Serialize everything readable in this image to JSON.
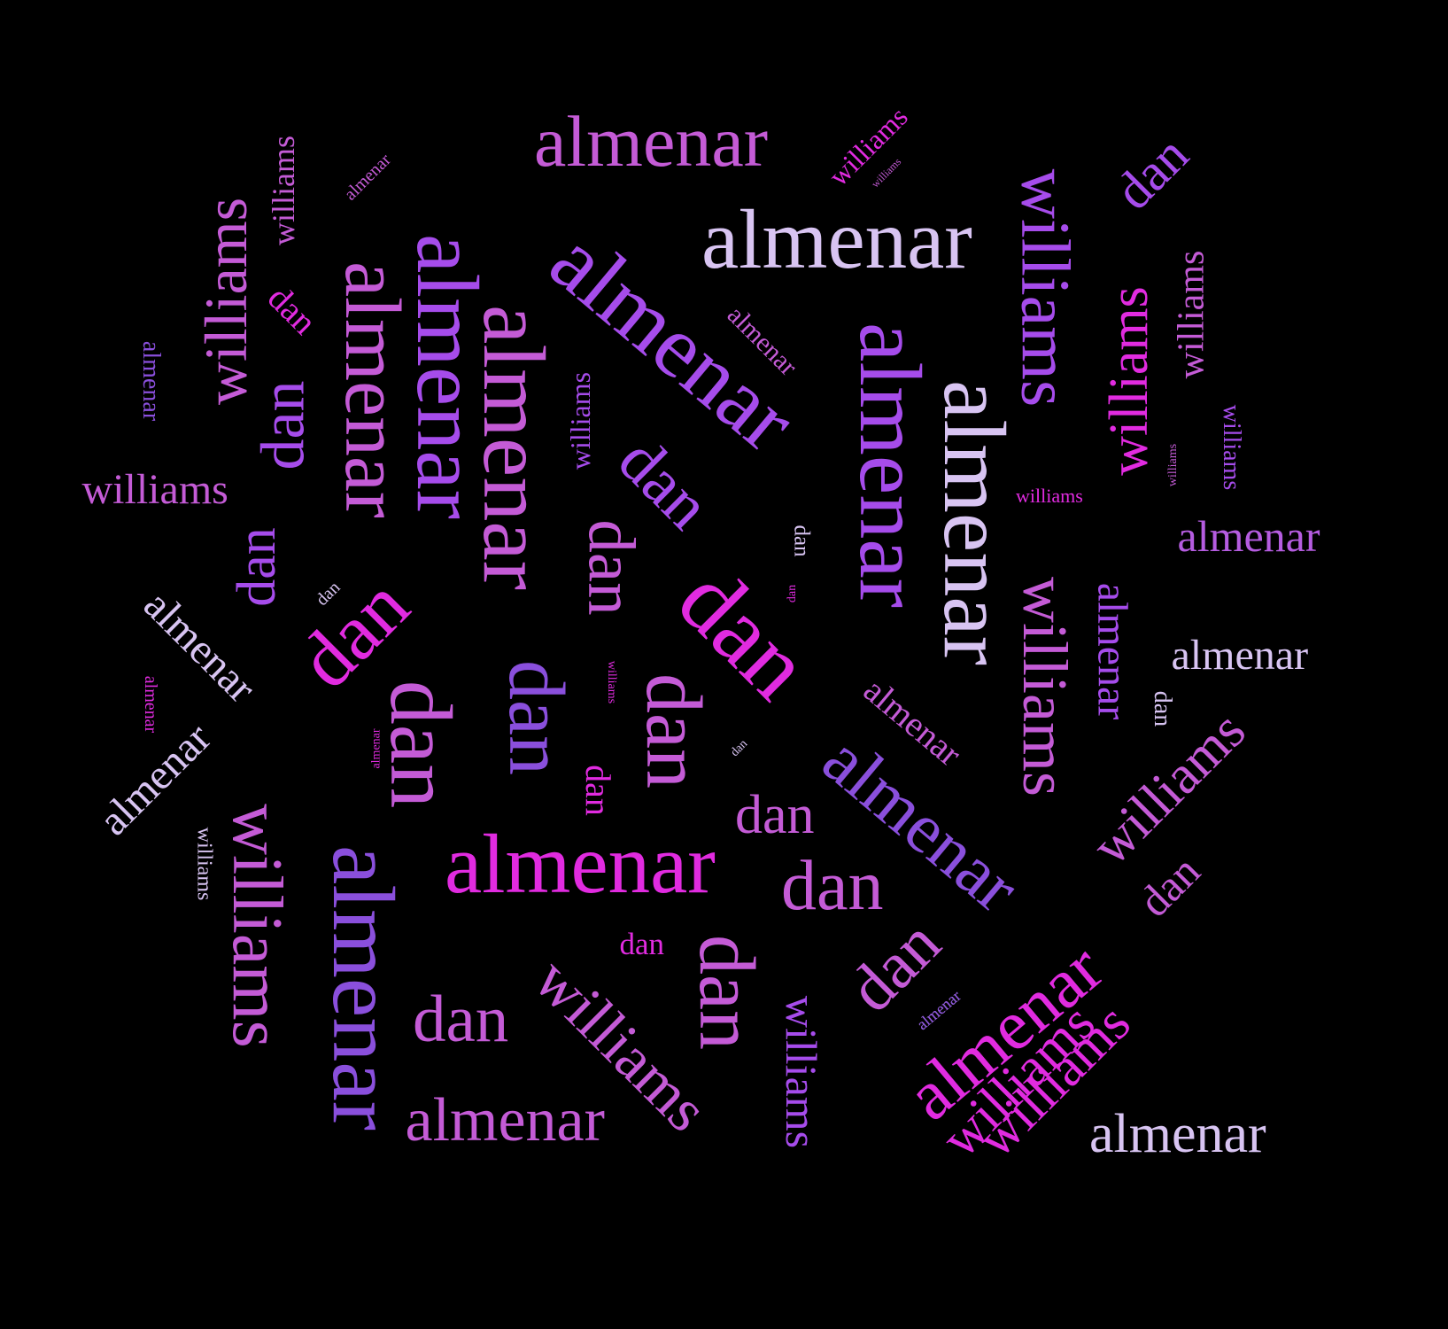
{
  "palette": {
    "background": "#000000",
    "lavender": "#D8C4F2",
    "orchid": "#C45BD6",
    "violet": "#A64CEB",
    "purple": "#8A4FDC",
    "magenta": "#E12BE0",
    "pink": "#D93CC8"
  },
  "words": [
    {
      "text": "almenar",
      "weight": 5,
      "color": "#C45BD6"
    },
    {
      "text": "almenar",
      "weight": 6,
      "color": "#D8C4F2"
    },
    {
      "text": "almenar",
      "weight": 6,
      "color": "#A64CEB"
    },
    {
      "text": "almenar",
      "weight": 6,
      "color": "#A64CEB"
    },
    {
      "text": "almenar",
      "weight": 6,
      "color": "#C45BD6"
    },
    {
      "text": "almenar",
      "weight": 5,
      "color": "#C45BD6"
    },
    {
      "text": "almenar",
      "weight": 6,
      "color": "#A64CEB"
    },
    {
      "text": "almenar",
      "weight": 6,
      "color": "#D8C4F2"
    },
    {
      "text": "almenar",
      "weight": 6,
      "color": "#E12BE0"
    },
    {
      "text": "almenar",
      "weight": 6,
      "color": "#8A4FDC"
    },
    {
      "text": "almenar",
      "weight": 6,
      "color": "#8A4FDC"
    },
    {
      "text": "almenar",
      "weight": 5,
      "color": "#E12BE0"
    },
    {
      "text": "almenar",
      "weight": 4,
      "color": "#C45BD6"
    },
    {
      "text": "almenar",
      "weight": 4,
      "color": "#D8C4F2"
    },
    {
      "text": "almenar",
      "weight": 3,
      "color": "#B55CE0"
    },
    {
      "text": "almenar",
      "weight": 3,
      "color": "#D8C4F2"
    },
    {
      "text": "almenar",
      "weight": 3,
      "color": "#A64CEB"
    },
    {
      "text": "almenar",
      "weight": 3,
      "color": "#D8C4F2"
    },
    {
      "text": "almenar",
      "weight": 3,
      "color": "#D8C4F2"
    },
    {
      "text": "almenar",
      "weight": 3,
      "color": "#C45BD6"
    },
    {
      "text": "almenar",
      "weight": 2,
      "color": "#C45BD6"
    },
    {
      "text": "almenar",
      "weight": 2,
      "color": "#8A4FDC"
    },
    {
      "text": "almenar",
      "weight": 2,
      "color": "#D8C4F2"
    },
    {
      "text": "almenar",
      "weight": 1,
      "color": "#C45BD6"
    },
    {
      "text": "almenar",
      "weight": 1,
      "color": "#E12BE0"
    },
    {
      "text": "almenar",
      "weight": 1,
      "color": "#E12BE0"
    },
    {
      "text": "almenar",
      "weight": 1,
      "color": "#8A4FDC"
    },
    {
      "text": "williams",
      "weight": 5,
      "color": "#C45BD6"
    },
    {
      "text": "williams",
      "weight": 5,
      "color": "#C45BD6"
    },
    {
      "text": "williams",
      "weight": 5,
      "color": "#C45BD6"
    },
    {
      "text": "williams",
      "weight": 5,
      "color": "#A64CEB"
    },
    {
      "text": "williams",
      "weight": 5,
      "color": "#C45BD6"
    },
    {
      "text": "williams",
      "weight": 5,
      "color": "#C45BD6"
    },
    {
      "text": "williams",
      "weight": 4,
      "color": "#E12BE0"
    },
    {
      "text": "williams",
      "weight": 4,
      "color": "#E12BE0"
    },
    {
      "text": "williams",
      "weight": 4,
      "color": "#E12BE0"
    },
    {
      "text": "williams",
      "weight": 3,
      "color": "#A64CEB"
    },
    {
      "text": "williams",
      "weight": 3,
      "color": "#C45BD6"
    },
    {
      "text": "williams",
      "weight": 2,
      "color": "#C45BD6"
    },
    {
      "text": "williams",
      "weight": 2,
      "color": "#C45BD6"
    },
    {
      "text": "williams",
      "weight": 2,
      "color": "#A64CEB"
    },
    {
      "text": "williams",
      "weight": 2,
      "color": "#E12BE0"
    },
    {
      "text": "williams",
      "weight": 2,
      "color": "#A64CEB"
    },
    {
      "text": "williams",
      "weight": 2,
      "color": "#D8C4F2"
    },
    {
      "text": "williams",
      "weight": 1,
      "color": "#E12BE0"
    },
    {
      "text": "williams",
      "weight": 1,
      "color": "#C45BD6"
    },
    {
      "text": "williams",
      "weight": 1,
      "color": "#E12BE0"
    },
    {
      "text": "williams",
      "weight": 1,
      "color": "#C45BD6"
    },
    {
      "text": "dan",
      "weight": 6,
      "color": "#E12BE0"
    },
    {
      "text": "dan",
      "weight": 5,
      "color": "#E12BE0"
    },
    {
      "text": "dan",
      "weight": 5,
      "color": "#C45BD6"
    },
    {
      "text": "dan",
      "weight": 5,
      "color": "#8A4FDC"
    },
    {
      "text": "dan",
      "weight": 5,
      "color": "#C45BD6"
    },
    {
      "text": "dan",
      "weight": 5,
      "color": "#C45BD6"
    },
    {
      "text": "dan",
      "weight": 5,
      "color": "#A64CEB"
    },
    {
      "text": "dan",
      "weight": 5,
      "color": "#C45BD6"
    },
    {
      "text": "dan",
      "weight": 4,
      "color": "#C45BD6"
    },
    {
      "text": "dan",
      "weight": 4,
      "color": "#C45BD6"
    },
    {
      "text": "dan",
      "weight": 4,
      "color": "#C45BD6"
    },
    {
      "text": "dan",
      "weight": 4,
      "color": "#A64CEB"
    },
    {
      "text": "dan",
      "weight": 4,
      "color": "#A64CEB"
    },
    {
      "text": "dan",
      "weight": 4,
      "color": "#C45BD6"
    },
    {
      "text": "dan",
      "weight": 4,
      "color": "#E12BE0"
    },
    {
      "text": "dan",
      "weight": 3,
      "color": "#E12BE0"
    },
    {
      "text": "dan",
      "weight": 3,
      "color": "#C45BD6"
    },
    {
      "text": "dan",
      "weight": 3,
      "color": "#A64CEB"
    },
    {
      "text": "dan",
      "weight": 2,
      "color": "#E12BE0"
    },
    {
      "text": "dan",
      "weight": 2,
      "color": "#D8C4F2"
    },
    {
      "text": "dan",
      "weight": 2,
      "color": "#D8C4F2"
    },
    {
      "text": "dan",
      "weight": 1,
      "color": "#D8C4F2"
    },
    {
      "text": "dan",
      "weight": 1,
      "color": "#E12BE0"
    },
    {
      "text": "dan",
      "weight": 1,
      "color": "#D8C4F2"
    },
    {
      "text": "dan",
      "weight": 1,
      "color": "#D8C4F2"
    }
  ]
}
